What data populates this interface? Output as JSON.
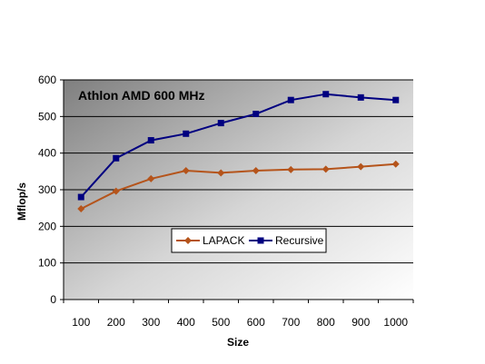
{
  "chart_data": {
    "type": "line",
    "title": "Athlon AMD 600 MHz",
    "xlabel": "Size",
    "ylabel": "Mflop/s",
    "x": [
      100,
      200,
      300,
      400,
      500,
      600,
      700,
      800,
      900,
      1000
    ],
    "ylim": [
      0,
      600
    ],
    "yticks": [
      0,
      100,
      200,
      300,
      400,
      500,
      600
    ],
    "grid": true,
    "legend": "bottom-center",
    "series": [
      {
        "name": "LAPACK",
        "color": "#B5541B",
        "marker": "diamond",
        "values": [
          248,
          296,
          330,
          352,
          346,
          352,
          355,
          356,
          363,
          370
        ]
      },
      {
        "name": "Recursive",
        "color": "#000080",
        "marker": "square",
        "values": [
          280,
          386,
          435,
          453,
          482,
          507,
          545,
          561,
          552,
          545
        ]
      }
    ]
  }
}
